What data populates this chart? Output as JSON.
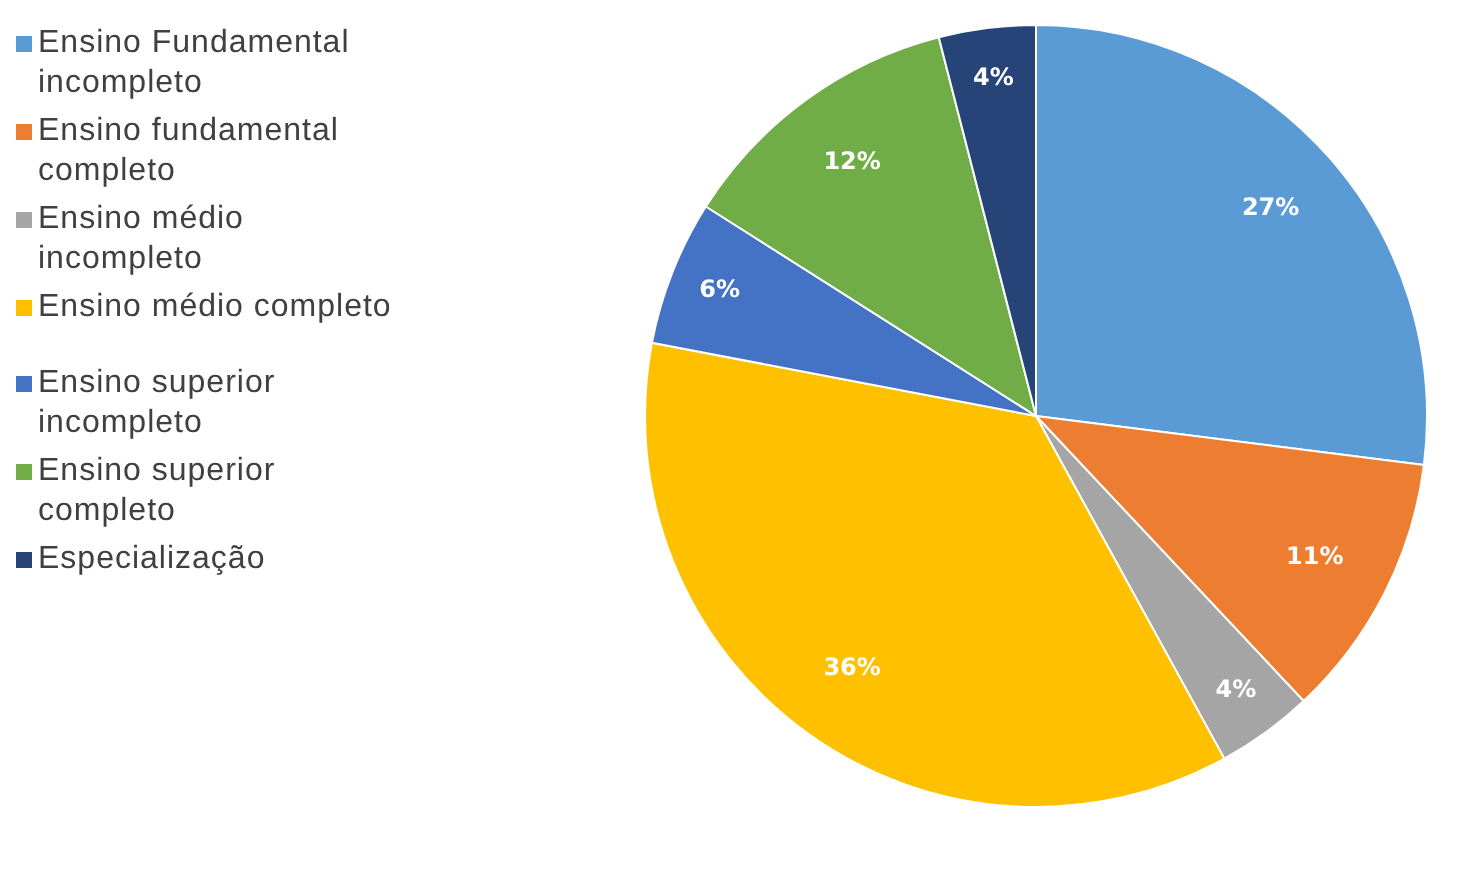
{
  "chart_data": {
    "type": "pie",
    "categories": [
      "Ensino Fundamental incompleto",
      "Ensino fundamental completo",
      "Ensino médio incompleto",
      "Ensino médio completo",
      "Ensino superior incompleto",
      "Ensino superior completo",
      "Especialização"
    ],
    "values": [
      27,
      11,
      4,
      36,
      6,
      12,
      4
    ],
    "value_labels": [
      "27%",
      "11%",
      "4%",
      "36%",
      "6%",
      "12%",
      "4%"
    ],
    "colors": [
      "#5b9bd5",
      "#ed7d31",
      "#a5a5a5",
      "#ffc000",
      "#4472c4",
      "#70ad47",
      "#264478"
    ],
    "legend": "left"
  }
}
